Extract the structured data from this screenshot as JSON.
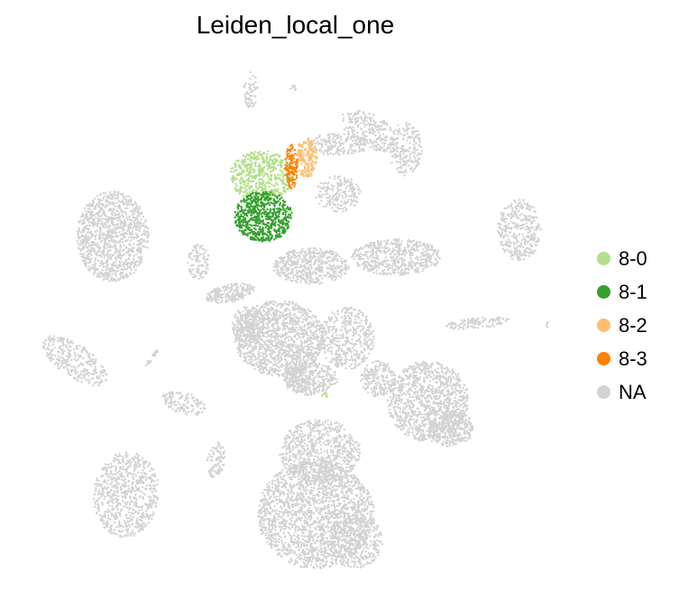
{
  "chart_data": {
    "type": "scatter",
    "title": "Leiden_local_one",
    "legend_position": "right",
    "grid": false,
    "axes_visible": false,
    "colors": {
      "8-0": "#b2df8a",
      "8-1": "#33a02c",
      "8-2": "#fdbf6f",
      "8-3": "#ff7f00",
      "NA": "#d3d3d3"
    },
    "legend": [
      {
        "label": "8-0",
        "color": "#b2df8a"
      },
      {
        "label": "8-1",
        "color": "#33a02c"
      },
      {
        "label": "8-2",
        "color": "#fdbf6f"
      },
      {
        "label": "8-3",
        "color": "#ff7f00"
      },
      {
        "label": "NA",
        "color": "#d3d3d3"
      }
    ]
  }
}
